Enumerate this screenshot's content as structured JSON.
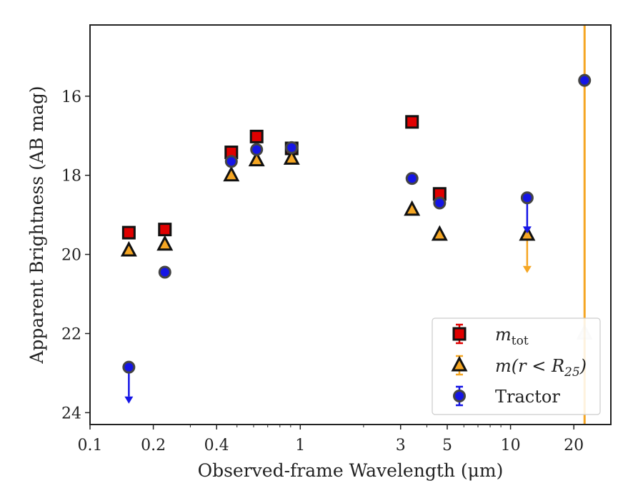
{
  "chart_data": {
    "type": "scatter",
    "title": "",
    "xlabel": "Observed-frame Wavelength (μm)",
    "ylabel": "Apparent Brightness (AB mag)",
    "xscale": "log",
    "xlim": [
      0.1,
      30
    ],
    "ylim": [
      24.3,
      14.2
    ],
    "y_inverted": true,
    "x_ticks": [
      {
        "value": 0.1,
        "label": "0.1"
      },
      {
        "value": 0.2,
        "label": "0.2"
      },
      {
        "value": 0.4,
        "label": "0.4"
      },
      {
        "value": 1,
        "label": "1"
      },
      {
        "value": 3,
        "label": "3"
      },
      {
        "value": 5,
        "label": "5"
      },
      {
        "value": 10,
        "label": "10"
      },
      {
        "value": 20,
        "label": "20"
      }
    ],
    "y_ticks": [
      {
        "value": 16,
        "label": "16"
      },
      {
        "value": 18,
        "label": "18"
      },
      {
        "value": 20,
        "label": "20"
      },
      {
        "value": 22,
        "label": "22"
      },
      {
        "value": 24,
        "label": "24"
      }
    ],
    "grid": false,
    "legend_position": "lower-right",
    "vertical_line": {
      "x": 22.5,
      "color": "#f5a623"
    },
    "series": [
      {
        "key": "mtot",
        "name": "m_tot",
        "legend_label": {
          "base": "m",
          "sub": "tot",
          "tail": ""
        },
        "marker": "square",
        "color": "#e00000",
        "edge": "#111111",
        "points": [
          {
            "x": 0.153,
            "y": 19.45
          },
          {
            "x": 0.227,
            "y": 19.37
          },
          {
            "x": 0.47,
            "y": 17.42
          },
          {
            "x": 0.62,
            "y": 17.02
          },
          {
            "x": 0.91,
            "y": 17.32
          },
          {
            "x": 3.4,
            "y": 16.65
          },
          {
            "x": 4.6,
            "y": 18.47
          }
        ]
      },
      {
        "key": "mr25",
        "name": "m(r < R25)",
        "legend_label": {
          "base": "m(r < R",
          "sub": "25",
          "tail": ")"
        },
        "marker": "triangle",
        "color": "#f5a623",
        "edge": "#111111",
        "points": [
          {
            "x": 0.153,
            "y": 19.9
          },
          {
            "x": 0.227,
            "y": 19.75
          },
          {
            "x": 0.47,
            "y": 18.0
          },
          {
            "x": 0.62,
            "y": 17.62
          },
          {
            "x": 0.91,
            "y": 17.58
          },
          {
            "x": 3.4,
            "y": 18.87
          },
          {
            "x": 4.6,
            "y": 19.5
          },
          {
            "x": 12.0,
            "y": 19.5,
            "upper_limit_to": 20.4
          },
          {
            "x": 22.5,
            "y": 22.0,
            "faded": true
          }
        ]
      },
      {
        "key": "tractor",
        "name": "Tractor",
        "legend_label": {
          "base": "Tractor",
          "sub": "",
          "tail": ""
        },
        "marker": "circle",
        "color": "#1515e6",
        "edge": "#444444",
        "points": [
          {
            "x": 0.153,
            "y": 22.85,
            "upper_limit_to": 23.7
          },
          {
            "x": 0.227,
            "y": 20.45
          },
          {
            "x": 0.47,
            "y": 17.65
          },
          {
            "x": 0.62,
            "y": 17.35
          },
          {
            "x": 0.91,
            "y": 17.3
          },
          {
            "x": 3.4,
            "y": 18.08
          },
          {
            "x": 4.6,
            "y": 18.7
          },
          {
            "x": 12.0,
            "y": 18.57,
            "upper_limit_to": 19.4
          },
          {
            "x": 22.5,
            "y": 15.6
          }
        ]
      }
    ]
  }
}
